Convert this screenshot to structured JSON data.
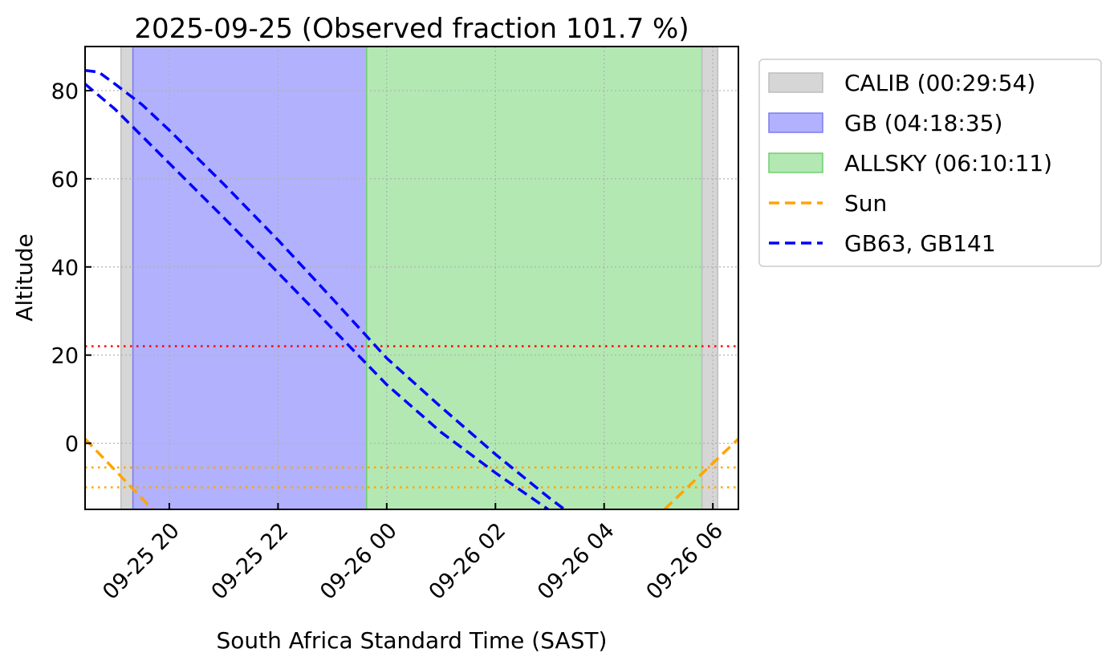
{
  "chart_data": {
    "type": "line",
    "title": "2025-09-25 (Observed fraction 101.7 %)",
    "xlabel": "South Africa Standard Time (SAST)",
    "ylabel": "Altitude",
    "x_units": "hours since 2025-09-25 00:00 SAST",
    "xlim": [
      18.45,
      30.47
    ],
    "ylim": [
      -15,
      90
    ],
    "grid": true,
    "legend_position": "outside-right-top",
    "xticks": [
      {
        "value": 20,
        "label": "09-25 20"
      },
      {
        "value": 22,
        "label": "09-25 22"
      },
      {
        "value": 24,
        "label": "09-26 00"
      },
      {
        "value": 26,
        "label": "09-26 02"
      },
      {
        "value": 28,
        "label": "09-26 04"
      },
      {
        "value": 30,
        "label": "09-26 06"
      }
    ],
    "yticks": [
      0,
      20,
      40,
      60,
      80
    ],
    "regions": [
      {
        "name": "CALIB",
        "start": 19.11,
        "end": 19.33,
        "color": "#d6d6d6",
        "edge": "#bdbdbd"
      },
      {
        "name": "GB",
        "start": 19.33,
        "end": 23.63,
        "color": "#b1b1fd",
        "edge": "#7b7bf0"
      },
      {
        "name": "ALLSKY",
        "start": 23.63,
        "end": 29.8,
        "color": "#b3e8b3",
        "edge": "#6fcf6f"
      },
      {
        "name": "CALIB",
        "start": 29.8,
        "end": 30.09,
        "color": "#d6d6d6",
        "edge": "#bdbdbd"
      }
    ],
    "hlines": [
      {
        "y": 22,
        "color": "#ff0000"
      },
      {
        "y": -5.5,
        "color": "#ffa500"
      },
      {
        "y": -10,
        "color": "#ffa500"
      }
    ],
    "series": [
      {
        "name": "Sun",
        "color": "#ffa500",
        "segments": [
          [
            [
              18.45,
              1
            ],
            [
              19.69,
              -15
            ]
          ],
          [
            [
              29.11,
              -15
            ],
            [
              30.47,
              1
            ]
          ]
        ]
      },
      {
        "name": "GB63",
        "color": "#0000ff",
        "segments": [
          [
            [
              18.45,
              84.6
            ],
            [
              18.7,
              84.2
            ],
            [
              19.0,
              81.5
            ],
            [
              19.5,
              76.8
            ],
            [
              20,
              71
            ],
            [
              21,
              58.8
            ],
            [
              22,
              46.1
            ],
            [
              23,
              32.8
            ],
            [
              24,
              19.3
            ],
            [
              25,
              8.2
            ],
            [
              26,
              -2.5
            ],
            [
              27,
              -12.5
            ],
            [
              27.27,
              -15
            ]
          ]
        ]
      },
      {
        "name": "GB141",
        "color": "#0000ff",
        "segments": [
          [
            [
              18.45,
              81.5
            ],
            [
              19,
              75.8
            ],
            [
              20,
              63.5
            ],
            [
              21,
              51.2
            ],
            [
              22,
              38.7
            ],
            [
              23,
              26
            ],
            [
              24,
              13.3
            ],
            [
              25,
              2.5
            ],
            [
              26,
              -6.7
            ],
            [
              26.97,
              -15
            ]
          ]
        ]
      }
    ],
    "legend": [
      {
        "label": "CALIB (00:29:54)",
        "kind": "patch",
        "color": "#d6d6d6",
        "edge": "#bdbdbd"
      },
      {
        "label": "GB (04:18:35)",
        "kind": "patch",
        "color": "#b1b1fd",
        "edge": "#7b7bf0"
      },
      {
        "label": "ALLSKY (06:10:11)",
        "kind": "patch",
        "color": "#b3e8b3",
        "edge": "#6fcf6f"
      },
      {
        "label": "Sun",
        "kind": "line",
        "color": "#ffa500"
      },
      {
        "label": "GB63, GB141",
        "kind": "line",
        "color": "#0000ff"
      }
    ]
  }
}
